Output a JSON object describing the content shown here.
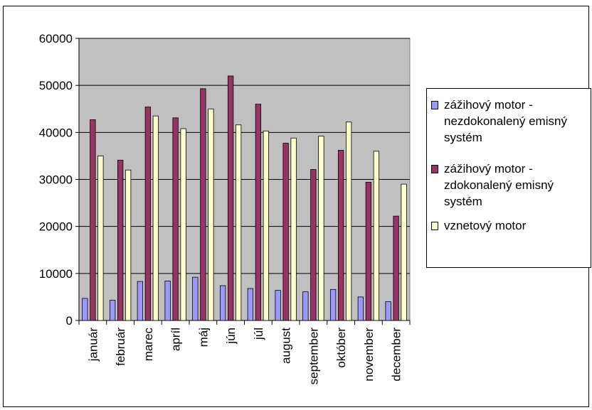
{
  "chart_data": {
    "type": "bar",
    "title": "",
    "xlabel": "",
    "ylabel": "",
    "ylim": [
      0,
      60000
    ],
    "yticks": [
      "0",
      "10000",
      "20000",
      "30000",
      "40000",
      "50000",
      "60000"
    ],
    "grid": true,
    "legend_position": "right",
    "plot_background": "#c0c0c0",
    "categories": [
      "január",
      "február",
      "marec",
      "apríl",
      "máj",
      "jún",
      "júl",
      "august",
      "september",
      "október",
      "november",
      "december"
    ],
    "series": [
      {
        "name": "zážihový motor - nezdokonalený emisný systém",
        "color": "#9999ff",
        "values": [
          4700,
          4300,
          8300,
          8400,
          9200,
          7400,
          6800,
          6400,
          6100,
          6600,
          5000,
          4000
        ]
      },
      {
        "name": "zážihový motor - zdokonalený emisný systém",
        "color": "#993366",
        "values": [
          42700,
          34100,
          45400,
          43100,
          49300,
          52000,
          46000,
          37700,
          32100,
          36200,
          29400,
          22200
        ]
      },
      {
        "name": "vznetový motor",
        "color": "#ffffcc",
        "values": [
          35000,
          32000,
          43500,
          40800,
          45000,
          41600,
          40300,
          38800,
          39200,
          42200,
          36000,
          29000
        ]
      }
    ]
  }
}
